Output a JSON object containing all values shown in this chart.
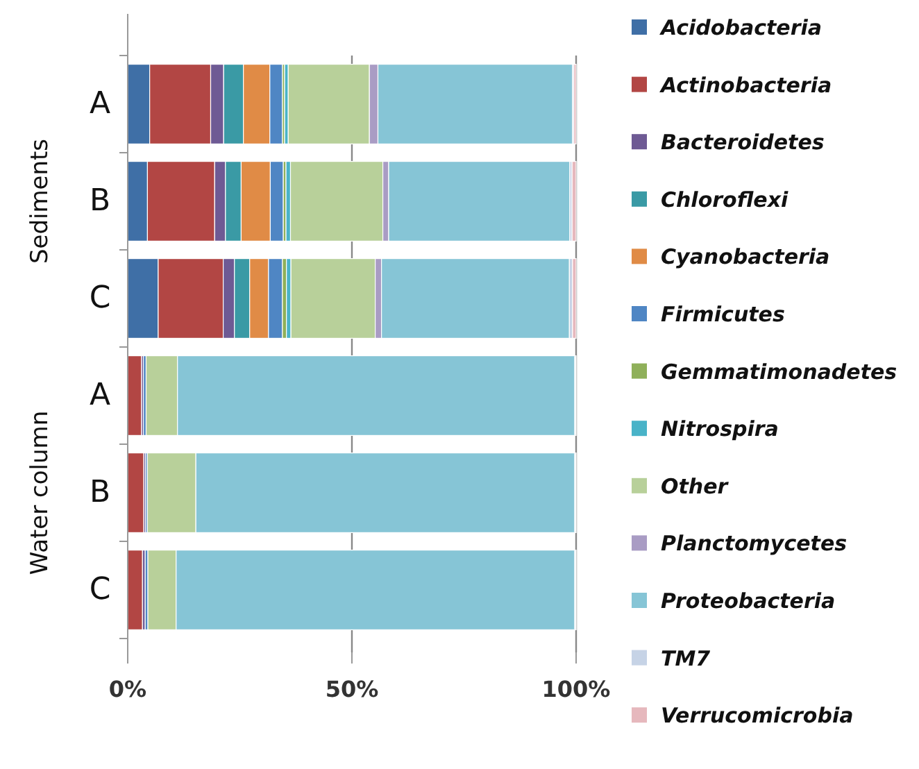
{
  "chart_data": {
    "type": "bar",
    "orientation": "horizontal",
    "stacked": true,
    "categories": [
      "A",
      "B",
      "C",
      "A",
      "B",
      "C"
    ],
    "annotations": [
      "Sediments",
      "Water column"
    ],
    "xlim": [
      0,
      100
    ],
    "xticks": [
      {
        "value": 0,
        "label": "0%"
      },
      {
        "value": 50,
        "label": "50%"
      },
      {
        "value": 100,
        "label": "100%"
      }
    ],
    "grid": "x",
    "legend": "right",
    "series": [
      {
        "name": "Acidobacteria",
        "color": "#3f6fa6",
        "values": [
          4.9,
          4.4,
          6.8,
          0,
          0,
          0
        ]
      },
      {
        "name": "Actinobacteria",
        "color": "#b24644",
        "values": [
          13.6,
          15.0,
          14.5,
          3.1,
          3.6,
          3.3
        ]
      },
      {
        "name": "Bacteroidetes",
        "color": "#6e5a94",
        "values": [
          2.9,
          2.4,
          2.5,
          0.4,
          0.4,
          0.6
        ]
      },
      {
        "name": "Chloroflexi",
        "color": "#3a9aa5",
        "values": [
          4.4,
          3.5,
          3.4,
          0,
          0,
          0
        ]
      },
      {
        "name": "Cyanobacteria",
        "color": "#e08b46",
        "values": [
          5.9,
          6.5,
          4.2,
          0,
          0,
          0
        ]
      },
      {
        "name": "Firmicutes",
        "color": "#4f86c4",
        "values": [
          2.8,
          2.9,
          3.1,
          0.6,
          0.4,
          0.6
        ]
      },
      {
        "name": "Gemmatimonadetes",
        "color": "#8fb05a",
        "values": [
          0.5,
          0.6,
          0.9,
          0,
          0,
          0
        ]
      },
      {
        "name": "Nitrospira",
        "color": "#49b3c8",
        "values": [
          0.8,
          1.0,
          1.0,
          0,
          0,
          0
        ]
      },
      {
        "name": "Other",
        "color": "#b8d09a",
        "values": [
          18.1,
          20.6,
          18.8,
          7.0,
          10.8,
          6.3
        ]
      },
      {
        "name": "Planctomycetes",
        "color": "#a99cc4",
        "values": [
          1.9,
          1.3,
          1.4,
          0,
          0,
          0
        ]
      },
      {
        "name": "Proteobacteria",
        "color": "#86c5d6",
        "values": [
          43.4,
          40.4,
          41.9,
          88.6,
          84.5,
          88.9
        ]
      },
      {
        "name": "TM7",
        "color": "#c6d3e6",
        "values": [
          0.3,
          0.5,
          0.7,
          0.2,
          0.2,
          0.2
        ]
      },
      {
        "name": "Verrucomicrobia",
        "color": "#e6b8bd",
        "values": [
          0.5,
          0.9,
          0.8,
          0.1,
          0.1,
          0.1
        ]
      }
    ]
  }
}
